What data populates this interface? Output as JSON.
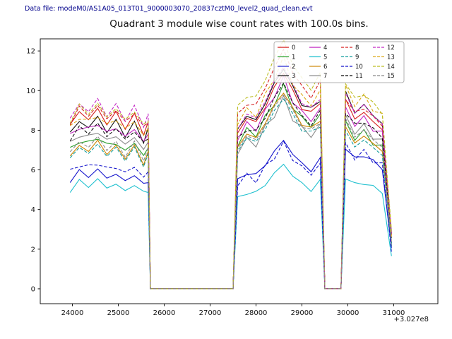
{
  "header": {
    "data_file_label": "Data file: modeM0/AS1A05_013T01_9000003070_20837cztM0_level2_quad_clean.evt"
  },
  "chart_data": {
    "type": "line",
    "title": "Quadrant 3 module wise count rates with 100.0s bins.",
    "xlabel": "",
    "ylabel": "",
    "x_offset_label": "+3.027e8",
    "x_ticks": [
      24000,
      25000,
      26000,
      27000,
      28000,
      29000,
      30000,
      31000
    ],
    "y_ticks": [
      0,
      2,
      4,
      6,
      8,
      10,
      12
    ],
    "xlim": [
      23300,
      31961
    ],
    "ylim": [
      -0.75,
      12.61
    ],
    "grid": false,
    "legend": {
      "position": "upper right",
      "columns": 4
    },
    "x": [
      23950,
      24150,
      24350,
      24550,
      24750,
      24950,
      25150,
      25350,
      25550,
      25650,
      25700,
      27500,
      27600,
      27800,
      28000,
      28200,
      28400,
      28600,
      28800,
      29000,
      29200,
      29400,
      29500,
      29850,
      29950,
      30150,
      30350,
      30550,
      30750,
      30950
    ],
    "series": [
      {
        "name": "0",
        "color": "#d62020",
        "dash": false,
        "values": [
          8.3,
          8.9,
          8.6,
          9.0,
          8.4,
          8.8,
          8.2,
          8.7,
          7.9,
          8.3,
          0,
          0,
          7.9,
          8.6,
          8.4,
          9.2,
          10.1,
          11.0,
          9.9,
          9.2,
          8.8,
          9.5,
          0,
          0,
          9.5,
          8.6,
          8.9,
          8.4,
          8.1,
          2.6
        ]
      },
      {
        "name": "1",
        "color": "#2ca02c",
        "dash": false,
        "values": [
          7.0,
          7.5,
          7.3,
          7.7,
          7.2,
          7.4,
          6.9,
          7.4,
          6.7,
          7.1,
          0,
          0,
          7.3,
          8.0,
          7.8,
          8.6,
          9.4,
          10.2,
          9.2,
          8.6,
          8.2,
          8.8,
          0,
          0,
          8.4,
          7.6,
          7.9,
          7.4,
          7.1,
          2.3
        ]
      },
      {
        "name": "2",
        "color": "#1414cc",
        "dash": false,
        "values": [
          5.5,
          5.9,
          5.7,
          6.0,
          5.6,
          5.8,
          5.4,
          5.8,
          5.2,
          5.5,
          0,
          0,
          5.4,
          5.9,
          5.7,
          6.3,
          6.9,
          7.5,
          6.8,
          6.3,
          6.0,
          6.5,
          0,
          0,
          7.2,
          6.5,
          6.8,
          6.4,
          6.1,
          2.0
        ]
      },
      {
        "name": "3",
        "color": "#101010",
        "dash": false,
        "values": [
          7.9,
          8.4,
          8.2,
          8.6,
          8.0,
          8.4,
          7.8,
          8.3,
          7.5,
          8.0,
          0,
          0,
          8.1,
          8.7,
          8.5,
          9.4,
          10.3,
          11.2,
          10.1,
          9.4,
          9.0,
          9.6,
          0,
          0,
          9.9,
          8.9,
          9.3,
          8.7,
          8.4,
          2.7
        ]
      },
      {
        "name": "4",
        "color": "#c428c4",
        "dash": false,
        "values": [
          7.7,
          8.2,
          8.0,
          8.4,
          7.8,
          8.2,
          7.6,
          8.1,
          7.4,
          7.8,
          0,
          0,
          7.6,
          8.3,
          8.1,
          8.9,
          9.8,
          10.6,
          9.5,
          8.9,
          8.5,
          9.1,
          0,
          0,
          9.1,
          8.3,
          8.6,
          8.1,
          7.8,
          2.5
        ]
      },
      {
        "name": "5",
        "color": "#1fc0cf",
        "dash": false,
        "values": [
          5.0,
          5.4,
          5.2,
          5.5,
          5.1,
          5.3,
          4.9,
          5.3,
          4.8,
          5.0,
          0,
          0,
          4.5,
          4.9,
          4.8,
          5.3,
          5.8,
          6.3,
          5.7,
          5.3,
          5.0,
          5.4,
          0,
          0,
          5.7,
          5.2,
          5.4,
          5.1,
          4.9,
          1.6
        ]
      },
      {
        "name": "6",
        "color": "#cc8400",
        "dash": false,
        "values": [
          6.7,
          7.2,
          7.0,
          7.4,
          6.9,
          7.1,
          6.7,
          7.1,
          6.4,
          6.8,
          0,
          0,
          7.2,
          7.8,
          7.6,
          8.4,
          9.2,
          10.0,
          9.0,
          8.4,
          8.0,
          8.6,
          0,
          0,
          8.1,
          7.4,
          7.7,
          7.3,
          7.0,
          2.2
        ]
      },
      {
        "name": "7",
        "color": "#8c8c8c",
        "dash": false,
        "values": [
          7.3,
          7.8,
          7.6,
          8.0,
          7.4,
          7.8,
          7.2,
          7.7,
          7.0,
          7.4,
          0,
          0,
          6.9,
          7.5,
          7.3,
          8.1,
          8.8,
          9.6,
          8.6,
          8.1,
          7.7,
          8.3,
          0,
          0,
          8.7,
          7.9,
          8.2,
          7.7,
          7.4,
          2.4
        ]
      },
      {
        "name": "8",
        "color": "#d62020",
        "dash": true,
        "values": [
          8.4,
          9.1,
          8.8,
          9.2,
          8.6,
          9.0,
          8.4,
          8.9,
          8.1,
          8.5,
          0,
          0,
          8.7,
          9.4,
          9.2,
          10.2,
          11.1,
          12.1,
          10.9,
          10.2,
          9.7,
          10.4,
          0,
          0,
          9.7,
          8.8,
          9.2,
          8.6,
          8.3,
          2.6
        ]
      },
      {
        "name": "9",
        "color": "#0f9b9b",
        "dash": true,
        "values": [
          6.6,
          7.1,
          6.9,
          7.2,
          6.8,
          7.0,
          6.6,
          7.0,
          6.3,
          6.7,
          0,
          0,
          7.0,
          7.6,
          7.4,
          8.1,
          8.9,
          9.7,
          8.7,
          8.1,
          7.8,
          8.3,
          0,
          0,
          7.9,
          7.2,
          7.5,
          7.1,
          6.8,
          2.2
        ]
      },
      {
        "name": "10",
        "color": "#1414cc",
        "dash": true,
        "values": [
          5.9,
          6.3,
          6.1,
          6.4,
          6.0,
          6.2,
          5.8,
          6.2,
          5.6,
          5.9,
          0,
          0,
          5.3,
          5.7,
          5.5,
          6.1,
          6.7,
          7.3,
          6.6,
          6.1,
          5.8,
          6.3,
          0,
          0,
          7.3,
          6.6,
          6.9,
          6.5,
          6.2,
          2.0
        ]
      },
      {
        "name": "11",
        "color": "#101010",
        "dash": true,
        "values": [
          7.6,
          8.1,
          7.9,
          8.3,
          7.7,
          8.1,
          7.5,
          8.0,
          7.3,
          7.7,
          0,
          0,
          7.5,
          8.1,
          7.9,
          8.7,
          9.6,
          10.4,
          9.4,
          8.7,
          8.3,
          8.9,
          0,
          0,
          9.0,
          8.2,
          8.5,
          8.0,
          7.7,
          2.5
        ]
      },
      {
        "name": "12",
        "color": "#c428c4",
        "dash": true,
        "values": [
          8.6,
          9.3,
          9.0,
          9.5,
          8.8,
          9.2,
          8.6,
          9.1,
          8.3,
          8.7,
          0,
          0,
          8.1,
          8.8,
          8.6,
          9.5,
          10.4,
          11.3,
          10.2,
          9.5,
          9.0,
          9.7,
          0,
          0,
          9.8,
          8.9,
          9.3,
          8.7,
          8.4,
          2.7
        ]
      },
      {
        "name": "13",
        "color": "#dba817",
        "dash": true,
        "values": [
          8.1,
          8.7,
          8.4,
          8.8,
          8.2,
          8.6,
          8.0,
          8.5,
          7.7,
          8.1,
          0,
          0,
          8.4,
          9.0,
          8.8,
          9.7,
          10.7,
          11.6,
          10.4,
          9.7,
          9.3,
          10.0,
          0,
          0,
          10.2,
          9.3,
          9.7,
          9.1,
          8.7,
          2.8
        ]
      },
      {
        "name": "14",
        "color": "#bcbd22",
        "dash": true,
        "values": [
          8.5,
          9.2,
          8.9,
          9.3,
          8.7,
          9.1,
          8.5,
          9.0,
          8.2,
          8.6,
          0,
          0,
          9.1,
          9.8,
          9.6,
          10.6,
          11.6,
          12.6,
          11.3,
          10.6,
          10.1,
          10.8,
          0,
          0,
          10.5,
          9.5,
          9.9,
          9.3,
          8.9,
          2.9
        ]
      },
      {
        "name": "15",
        "color": "#8c8c8c",
        "dash": true,
        "values": [
          6.9,
          7.4,
          7.2,
          7.6,
          7.1,
          7.3,
          6.8,
          7.3,
          6.6,
          7.0,
          0,
          0,
          7.1,
          7.7,
          7.5,
          8.3,
          9.1,
          9.9,
          8.9,
          8.3,
          7.9,
          8.5,
          0,
          0,
          8.5,
          7.7,
          8.0,
          7.5,
          7.2,
          2.3
        ]
      }
    ]
  }
}
